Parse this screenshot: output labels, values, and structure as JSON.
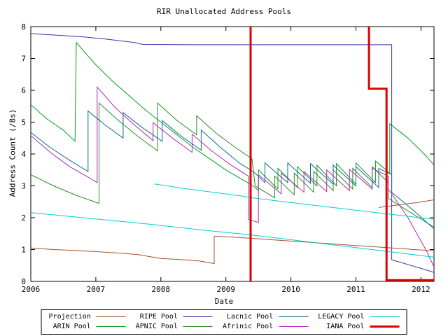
{
  "chart_data": {
    "type": "line",
    "title": "RIR Unallocated Address Pools",
    "xlabel": "Date",
    "ylabel": "Address Count (/8s)",
    "xlim": [
      2006,
      2012.2
    ],
    "ylim": [
      0,
      8
    ],
    "x_ticks": [
      2006,
      2007,
      2008,
      2009,
      2010,
      2011,
      2012
    ],
    "y_ticks": [
      0,
      1,
      2,
      3,
      4,
      5,
      6,
      7,
      8
    ],
    "grid": false,
    "legend_position": "below",
    "legend_rows": [
      [
        "Projection",
        "RIPE Pool",
        "Lacnic Pool",
        "LEGACY Pool"
      ],
      [
        "ARIN Pool",
        "APNIC Pool",
        "Afrinic Pool",
        "IANA Pool"
      ]
    ],
    "series": [
      {
        "name": "Projection",
        "color": "#a0522d",
        "width": 1,
        "segments": [
          [
            [
              2006.0,
              1.05
            ],
            [
              2006.35,
              1.0
            ],
            [
              2006.7,
              0.97
            ],
            [
              2007.05,
              0.93
            ],
            [
              2007.35,
              0.89
            ],
            [
              2007.65,
              0.84
            ],
            [
              2008.0,
              0.72
            ],
            [
              2008.35,
              0.68
            ],
            [
              2008.6,
              0.64
            ],
            [
              2008.82,
              0.56
            ],
            [
              2008.82,
              1.42
            ],
            [
              2009.2,
              1.38
            ],
            [
              2009.42,
              1.35
            ],
            [
              2009.9,
              1.28
            ],
            [
              2010.4,
              1.21
            ],
            [
              2010.9,
              1.14
            ],
            [
              2011.4,
              1.07
            ],
            [
              2011.9,
              1.0
            ],
            [
              2012.2,
              0.96
            ]
          ],
          [
            [
              2011.35,
              2.32
            ],
            [
              2011.65,
              2.4
            ],
            [
              2011.95,
              2.48
            ],
            [
              2012.2,
              2.56
            ]
          ]
        ]
      },
      {
        "name": "ARIN Pool",
        "color": "#00a018",
        "width": 1,
        "segments": [
          [
            [
              2006.0,
              5.55
            ],
            [
              2006.25,
              5.1
            ],
            [
              2006.5,
              4.75
            ],
            [
              2006.68,
              4.4
            ],
            [
              2006.7,
              7.5
            ],
            [
              2007.0,
              6.8
            ],
            [
              2007.25,
              6.3
            ],
            [
              2007.5,
              5.85
            ],
            [
              2007.75,
              5.4
            ],
            [
              2008.0,
              5.0
            ],
            [
              2008.25,
              4.6
            ],
            [
              2008.5,
              4.2
            ],
            [
              2008.75,
              3.85
            ],
            [
              2009.0,
              3.5
            ],
            [
              2009.25,
              3.2
            ],
            [
              2009.42,
              3.0
            ],
            [
              2009.5,
              2.85
            ],
            [
              2009.5,
              3.5
            ],
            [
              2009.8,
              2.9
            ],
            [
              2009.8,
              3.55
            ],
            [
              2010.1,
              2.95
            ],
            [
              2010.1,
              3.6
            ],
            [
              2010.4,
              3.0
            ],
            [
              2010.4,
              3.65
            ],
            [
              2010.7,
              3.0
            ],
            [
              2010.7,
              3.7
            ],
            [
              2011.0,
              3.05
            ],
            [
              2011.0,
              3.72
            ],
            [
              2011.3,
              3.1
            ],
            [
              2011.3,
              3.78
            ],
            [
              2011.52,
              3.4
            ],
            [
              2011.52,
              4.95
            ],
            [
              2011.8,
              4.5
            ],
            [
              2012.05,
              4.0
            ],
            [
              2012.2,
              3.65
            ]
          ]
        ]
      },
      {
        "name": "RIPE Pool",
        "color": "#3333aa",
        "width": 1,
        "segments": [
          [
            [
              2006.0,
              7.78
            ],
            [
              2006.4,
              7.73
            ],
            [
              2006.8,
              7.68
            ],
            [
              2007.1,
              7.62
            ],
            [
              2007.35,
              7.56
            ],
            [
              2007.6,
              7.5
            ],
            [
              2007.72,
              7.44
            ],
            [
              2008.5,
              7.43
            ],
            [
              2011.55,
              7.43
            ],
            [
              2011.55,
              0.68
            ],
            [
              2011.85,
              0.5
            ],
            [
              2012.1,
              0.35
            ],
            [
              2012.2,
              0.28
            ]
          ]
        ]
      },
      {
        "name": "APNIC Pool",
        "color": "#2e8b22",
        "width": 1,
        "segments": [
          [
            [
              2006.0,
              3.35
            ],
            [
              2006.35,
              3.0
            ],
            [
              2006.7,
              2.7
            ],
            [
              2007.05,
              2.45
            ],
            [
              2007.05,
              5.6
            ],
            [
              2007.35,
              5.05
            ],
            [
              2007.65,
              4.55
            ],
            [
              2007.95,
              4.1
            ],
            [
              2007.95,
              5.6
            ],
            [
              2008.25,
              5.05
            ],
            [
              2008.55,
              4.6
            ],
            [
              2008.55,
              5.2
            ],
            [
              2008.85,
              4.65
            ],
            [
              2009.15,
              4.2
            ],
            [
              2009.4,
              3.85
            ],
            [
              2009.45,
              3.0
            ],
            [
              2009.75,
              2.62
            ],
            [
              2009.75,
              3.3
            ],
            [
              2010.05,
              2.72
            ],
            [
              2010.05,
              3.4
            ],
            [
              2010.35,
              2.8
            ],
            [
              2010.35,
              3.45
            ],
            [
              2010.65,
              2.85
            ],
            [
              2010.65,
              3.5
            ],
            [
              2010.95,
              2.9
            ],
            [
              2010.95,
              3.55
            ],
            [
              2011.25,
              2.95
            ],
            [
              2011.25,
              3.6
            ],
            [
              2011.5,
              3.1
            ],
            [
              2011.5,
              2.6
            ],
            [
              2011.85,
              2.15
            ],
            [
              2012.2,
              1.7
            ]
          ]
        ]
      },
      {
        "name": "Lacnic Pool",
        "color": "#0b6b8e",
        "width": 1,
        "segments": [
          [
            [
              2006.0,
              4.68
            ],
            [
              2006.3,
              4.2
            ],
            [
              2006.6,
              3.8
            ],
            [
              2006.88,
              3.45
            ],
            [
              2006.88,
              5.35
            ],
            [
              2007.15,
              4.9
            ],
            [
              2007.42,
              4.5
            ],
            [
              2007.42,
              5.3
            ],
            [
              2007.72,
              4.82
            ],
            [
              2008.02,
              4.4
            ],
            [
              2008.02,
              5.05
            ],
            [
              2008.32,
              4.55
            ],
            [
              2008.62,
              4.12
            ],
            [
              2008.62,
              4.75
            ],
            [
              2008.92,
              4.2
            ],
            [
              2009.22,
              3.7
            ],
            [
              2009.42,
              3.45
            ],
            [
              2009.6,
              3.1
            ],
            [
              2009.6,
              3.72
            ],
            [
              2009.95,
              3.1
            ],
            [
              2009.95,
              3.72
            ],
            [
              2010.3,
              3.08
            ],
            [
              2010.3,
              3.7
            ],
            [
              2010.65,
              3.05
            ],
            [
              2010.65,
              3.65
            ],
            [
              2011.0,
              3.0
            ],
            [
              2011.0,
              3.6
            ],
            [
              2011.35,
              2.95
            ],
            [
              2011.35,
              3.55
            ],
            [
              2011.55,
              3.35
            ],
            [
              2011.55,
              2.8
            ],
            [
              2011.9,
              2.2
            ],
            [
              2012.2,
              1.65
            ]
          ]
        ]
      },
      {
        "name": "Afrinic Pool",
        "color": "#b428b4",
        "width": 1,
        "segments": [
          [
            [
              2006.0,
              4.58
            ],
            [
              2006.3,
              4.05
            ],
            [
              2006.6,
              3.6
            ],
            [
              2006.9,
              3.25
            ],
            [
              2007.02,
              3.1
            ],
            [
              2007.02,
              6.1
            ],
            [
              2007.3,
              5.45
            ],
            [
              2007.6,
              4.9
            ],
            [
              2007.88,
              4.42
            ],
            [
              2007.88,
              4.98
            ],
            [
              2008.18,
              4.5
            ],
            [
              2008.48,
              4.05
            ],
            [
              2008.48,
              4.62
            ],
            [
              2008.78,
              4.1
            ],
            [
              2009.08,
              3.65
            ],
            [
              2009.35,
              3.3
            ],
            [
              2009.35,
              1.95
            ],
            [
              2009.5,
              1.85
            ],
            [
              2009.5,
              3.35
            ],
            [
              2009.85,
              2.75
            ],
            [
              2009.85,
              3.4
            ],
            [
              2010.2,
              2.8
            ],
            [
              2010.2,
              3.45
            ],
            [
              2010.55,
              2.82
            ],
            [
              2010.55,
              3.5
            ],
            [
              2010.9,
              2.85
            ],
            [
              2010.9,
              3.52
            ],
            [
              2011.25,
              2.9
            ],
            [
              2011.25,
              3.55
            ],
            [
              2011.5,
              3.3
            ],
            [
              2011.5,
              2.9
            ],
            [
              2011.8,
              2.0
            ],
            [
              2012.1,
              0.9
            ],
            [
              2012.2,
              0.45
            ]
          ]
        ]
      },
      {
        "name": "LEGACY Pool",
        "color": "#00cdcd",
        "width": 1,
        "segments": [
          [
            [
              2006.0,
              2.16
            ],
            [
              2006.4,
              2.08
            ],
            [
              2006.8,
              2.0
            ],
            [
              2007.2,
              1.92
            ],
            [
              2007.55,
              1.85
            ],
            [
              2007.9,
              1.78
            ],
            [
              2008.25,
              1.7
            ],
            [
              2008.6,
              1.62
            ],
            [
              2008.95,
              1.55
            ],
            [
              2009.3,
              1.48
            ],
            [
              2009.42,
              1.45
            ],
            [
              2009.8,
              1.36
            ],
            [
              2010.2,
              1.26
            ],
            [
              2010.6,
              1.16
            ],
            [
              2011.0,
              1.06
            ],
            [
              2011.4,
              0.96
            ],
            [
              2011.8,
              0.86
            ],
            [
              2012.2,
              0.76
            ]
          ],
          [
            [
              2007.9,
              3.06
            ],
            [
              2008.35,
              2.92
            ],
            [
              2008.8,
              2.8
            ],
            [
              2009.25,
              2.68
            ],
            [
              2009.42,
              2.62
            ],
            [
              2009.9,
              2.5
            ],
            [
              2010.4,
              2.38
            ],
            [
              2010.9,
              2.26
            ],
            [
              2011.4,
              2.14
            ],
            [
              2011.9,
              2.02
            ],
            [
              2012.2,
              1.95
            ]
          ]
        ]
      },
      {
        "name": "IANA Pool",
        "color": "#dc0000",
        "width": 3,
        "segments": [
          [
            [
              2009.38,
              8
            ],
            [
              2009.38,
              0
            ]
          ],
          [
            [
              2011.2,
              8
            ],
            [
              2011.2,
              6.05
            ],
            [
              2011.47,
              6.05
            ],
            [
              2011.47,
              0.04
            ],
            [
              2012.2,
              0.04
            ]
          ]
        ]
      }
    ],
    "annotations": [
      {
        "type": "vline",
        "x": 2009.38,
        "meaning": "projection-start-marker",
        "color": "#dc0000"
      }
    ]
  }
}
